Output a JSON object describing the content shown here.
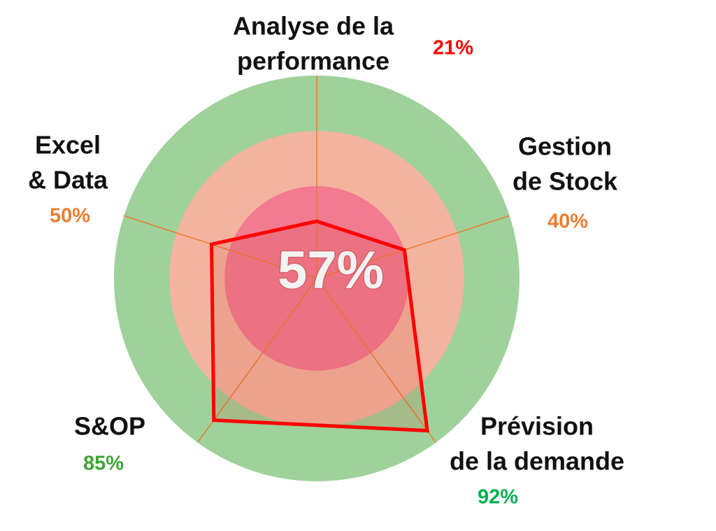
{
  "chart_data": {
    "type": "radar",
    "categories": [
      [
        "Analyse de la",
        "performance"
      ],
      [
        "Gestion",
        "de Stock"
      ],
      [
        "Prévision",
        "de la demande"
      ],
      [
        "S&OP"
      ],
      [
        "Excel",
        "& Data"
      ]
    ],
    "values": [
      21,
      40,
      92,
      85,
      50
    ],
    "value_labels": [
      "21%",
      "40%",
      "92%",
      "85%",
      "50%"
    ],
    "label_colors": [
      "#ff0000",
      "#ed7d31",
      "#00b050",
      "#3fa535",
      "#ed7d31"
    ],
    "color": "#ff0000",
    "rlim": [
      -10,
      100
    ],
    "bands": [
      {
        "to": 100,
        "color": "#9fd19b"
      },
      {
        "to": 70,
        "color": "#f3b39f"
      },
      {
        "to": 40,
        "color": "#f27a91"
      }
    ],
    "center_label": "57%"
  }
}
